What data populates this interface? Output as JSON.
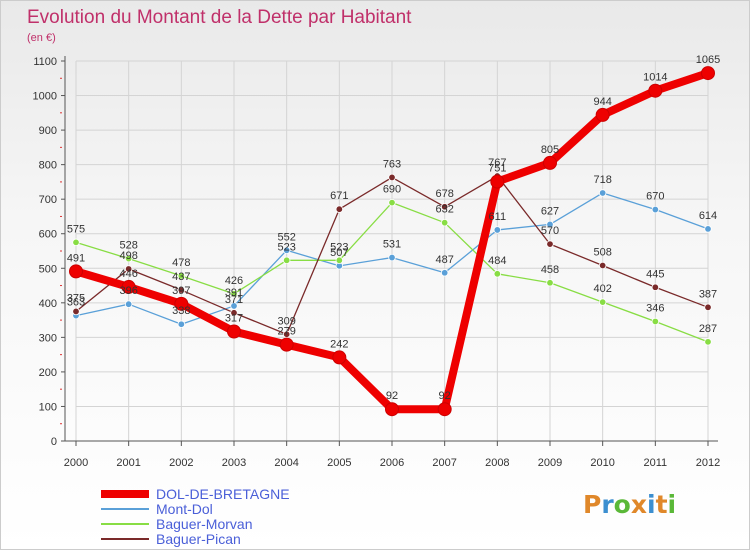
{
  "title": "Evolution du Montant de la Dette par Habitant",
  "subtitle": "(en €)",
  "logo": {
    "text": "Proxiti"
  },
  "colors": {
    "title": "#c0306a",
    "legend_text": "#4a5fd8",
    "tick_text": "#333333"
  },
  "chart_data": {
    "type": "line",
    "x": [
      2000,
      2001,
      2002,
      2003,
      2004,
      2005,
      2006,
      2007,
      2008,
      2009,
      2010,
      2011,
      2012
    ],
    "ylim": [
      0,
      1100
    ],
    "yticks": [
      0,
      100,
      200,
      300,
      400,
      500,
      600,
      700,
      800,
      900,
      1000,
      1100
    ],
    "grid": true,
    "legend_position": "bottom-left",
    "series": [
      {
        "name": "DOL-DE-BRETAGNE",
        "color": "#ee0000",
        "values": [
          491,
          446,
          397,
          317,
          279,
          242,
          92,
          92,
          751,
          805,
          944,
          1014,
          1065
        ]
      },
      {
        "name": "Mont-Dol",
        "color": "#5aa0d8",
        "values": [
          363,
          396,
          338,
          391,
          552,
          507,
          531,
          487,
          611,
          627,
          718,
          670,
          614
        ]
      },
      {
        "name": "Baguer-Morvan",
        "color": "#88dd44",
        "values": [
          575,
          528,
          478,
          426,
          523,
          523,
          690,
          632,
          484,
          458,
          402,
          346,
          287
        ]
      },
      {
        "name": "Baguer-Pican",
        "color": "#7a2a2a",
        "values": [
          375,
          498,
          437,
          371,
          309,
          671,
          763,
          678,
          767,
          570,
          508,
          445,
          387
        ]
      }
    ]
  }
}
